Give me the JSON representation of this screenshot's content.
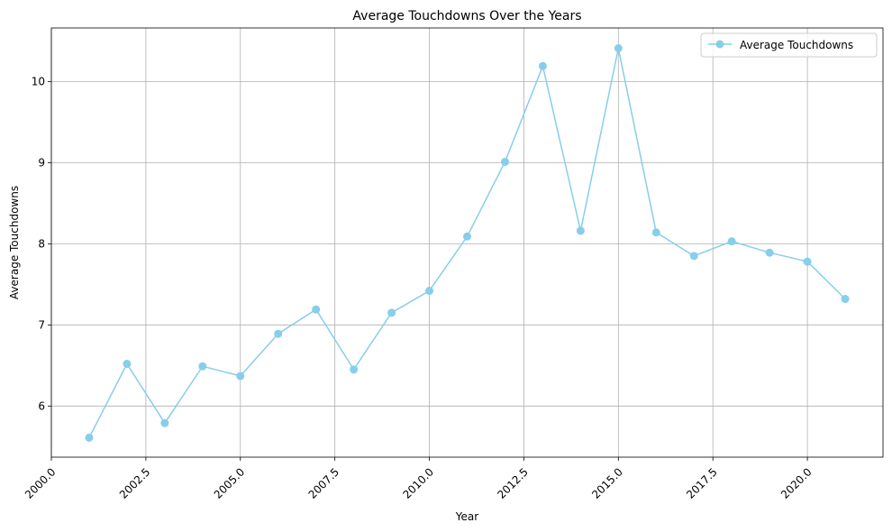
{
  "chart_data": {
    "type": "line",
    "title": "Average Touchdowns Over the Years",
    "xlabel": "Year",
    "ylabel": "Average Touchdowns",
    "xlim": [
      2000.0,
      2022.0
    ],
    "ylim": [
      5.37,
      10.66
    ],
    "xticks": [
      2000.0,
      2002.5,
      2005.0,
      2007.5,
      2010.0,
      2012.5,
      2015.0,
      2017.5,
      2020.0
    ],
    "xtick_labels": [
      "2000.0",
      "2002.5",
      "2005.0",
      "2007.5",
      "2010.0",
      "2012.5",
      "2015.0",
      "2017.5",
      "2020.0"
    ],
    "yticks": [
      6,
      7,
      8,
      9,
      10
    ],
    "ytick_labels": [
      "6",
      "7",
      "8",
      "9",
      "10"
    ],
    "grid": true,
    "legend_position": "top-right",
    "series": [
      {
        "name": "Average Touchdowns",
        "color": "#87CEEB",
        "marker": "circle",
        "x": [
          2001,
          2002,
          2003,
          2004,
          2005,
          2006,
          2007,
          2008,
          2009,
          2010,
          2011,
          2012,
          2013,
          2014,
          2015,
          2016,
          2017,
          2018,
          2019,
          2020,
          2021
        ],
        "y": [
          5.61,
          6.52,
          5.79,
          6.49,
          6.37,
          6.89,
          7.19,
          6.45,
          7.15,
          7.42,
          8.09,
          9.01,
          10.19,
          8.16,
          10.41,
          8.14,
          7.85,
          8.03,
          7.89,
          7.78,
          7.32
        ]
      }
    ]
  }
}
